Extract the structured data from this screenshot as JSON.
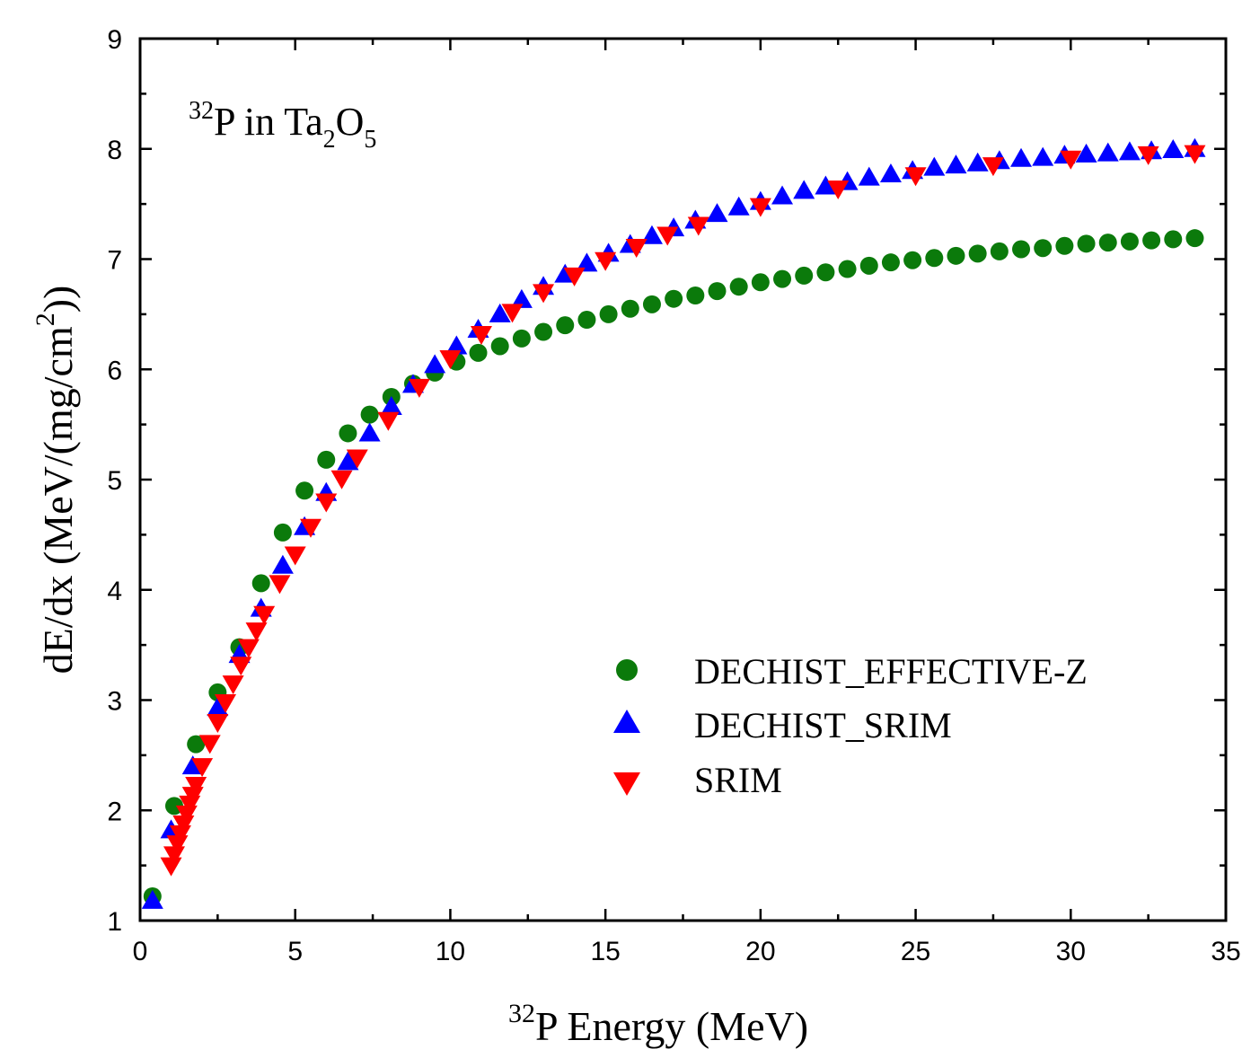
{
  "chart_data": {
    "type": "scatter",
    "annotation": {
      "sup": "32",
      "text1": "P in Ta",
      "sub1": "2",
      "text2": "O",
      "sub2": "5"
    },
    "xlabel": {
      "sup": "32",
      "text": "P Energy (MeV)"
    },
    "ylabel": {
      "text": "dE/dx (MeV/(mg/cm",
      "sup": "2",
      "close": "))"
    },
    "xlim": [
      0,
      35
    ],
    "ylim": [
      1,
      9
    ],
    "x_ticks": [
      0,
      5,
      10,
      15,
      20,
      25,
      30,
      35
    ],
    "y_ticks": [
      1,
      2,
      3,
      4,
      5,
      6,
      7,
      8,
      9
    ],
    "x_tick_labels": [
      "0",
      "5",
      "10",
      "15",
      "20",
      "25",
      "30",
      "35"
    ],
    "y_tick_labels": [
      "1",
      "2",
      "3",
      "4",
      "5",
      "6",
      "7",
      "8",
      "9"
    ],
    "x_minor_step": 2.5,
    "y_minor_step": 0.5,
    "legend_position": "lower-right",
    "grid": false,
    "series": [
      {
        "name": "DECHIST_EFFECTIVE-Z",
        "marker": "circle",
        "color": "#0b7a0b",
        "points": [
          [
            0.4,
            1.22
          ],
          [
            1.1,
            2.04
          ],
          [
            1.8,
            2.6
          ],
          [
            2.5,
            3.07
          ],
          [
            3.2,
            3.48
          ],
          [
            3.9,
            4.06
          ],
          [
            4.6,
            4.52
          ],
          [
            5.3,
            4.9
          ],
          [
            6.0,
            5.18
          ],
          [
            6.7,
            5.42
          ],
          [
            7.4,
            5.59
          ],
          [
            8.1,
            5.75
          ],
          [
            8.8,
            5.87
          ],
          [
            9.5,
            5.97
          ],
          [
            10.2,
            6.07
          ],
          [
            10.9,
            6.15
          ],
          [
            11.6,
            6.21
          ],
          [
            12.3,
            6.28
          ],
          [
            13.0,
            6.34
          ],
          [
            13.7,
            6.4
          ],
          [
            14.4,
            6.45
          ],
          [
            15.1,
            6.5
          ],
          [
            15.8,
            6.55
          ],
          [
            16.5,
            6.59
          ],
          [
            17.2,
            6.64
          ],
          [
            17.9,
            6.67
          ],
          [
            18.6,
            6.71
          ],
          [
            19.3,
            6.75
          ],
          [
            20.0,
            6.79
          ],
          [
            20.7,
            6.82
          ],
          [
            21.4,
            6.85
          ],
          [
            22.1,
            6.88
          ],
          [
            22.8,
            6.91
          ],
          [
            23.5,
            6.94
          ],
          [
            24.2,
            6.97
          ],
          [
            24.9,
            6.99
          ],
          [
            25.6,
            7.01
          ],
          [
            26.3,
            7.03
          ],
          [
            27.0,
            7.05
          ],
          [
            27.7,
            7.07
          ],
          [
            28.4,
            7.09
          ],
          [
            29.1,
            7.1
          ],
          [
            29.8,
            7.12
          ],
          [
            30.5,
            7.14
          ],
          [
            31.2,
            7.15
          ],
          [
            31.9,
            7.16
          ],
          [
            32.6,
            7.17
          ],
          [
            33.3,
            7.18
          ],
          [
            34.0,
            7.19
          ]
        ]
      },
      {
        "name": "DECHIST_SRIM",
        "marker": "triangle-up",
        "color": "#0000ff",
        "points": [
          [
            0.4,
            1.18
          ],
          [
            1.0,
            1.82
          ],
          [
            1.7,
            2.4
          ],
          [
            2.5,
            2.93
          ],
          [
            3.2,
            3.41
          ],
          [
            3.9,
            3.83
          ],
          [
            4.6,
            4.22
          ],
          [
            5.3,
            4.57
          ],
          [
            6.0,
            4.88
          ],
          [
            6.7,
            5.16
          ],
          [
            7.4,
            5.42
          ],
          [
            8.1,
            5.66
          ],
          [
            8.8,
            5.86
          ],
          [
            9.5,
            6.04
          ],
          [
            10.2,
            6.21
          ],
          [
            10.9,
            6.36
          ],
          [
            11.6,
            6.5
          ],
          [
            12.3,
            6.63
          ],
          [
            13.0,
            6.75
          ],
          [
            13.7,
            6.86
          ],
          [
            14.4,
            6.96
          ],
          [
            15.1,
            7.05
          ],
          [
            15.8,
            7.13
          ],
          [
            16.5,
            7.21
          ],
          [
            17.2,
            7.28
          ],
          [
            17.9,
            7.35
          ],
          [
            18.6,
            7.41
          ],
          [
            19.3,
            7.47
          ],
          [
            20.0,
            7.52
          ],
          [
            20.7,
            7.57
          ],
          [
            21.4,
            7.62
          ],
          [
            22.1,
            7.66
          ],
          [
            22.8,
            7.7
          ],
          [
            23.5,
            7.74
          ],
          [
            24.2,
            7.77
          ],
          [
            24.9,
            7.8
          ],
          [
            25.6,
            7.83
          ],
          [
            26.3,
            7.85
          ],
          [
            27.0,
            7.87
          ],
          [
            27.7,
            7.89
          ],
          [
            28.4,
            7.91
          ],
          [
            29.1,
            7.92
          ],
          [
            29.8,
            7.94
          ],
          [
            30.5,
            7.95
          ],
          [
            31.2,
            7.96
          ],
          [
            31.9,
            7.97
          ],
          [
            32.6,
            7.98
          ],
          [
            33.3,
            7.99
          ],
          [
            34.0,
            8.0
          ]
        ]
      },
      {
        "name": "SRIM",
        "marker": "triangle-down",
        "color": "#ff0000",
        "points": [
          [
            1.0,
            1.5
          ],
          [
            1.1,
            1.6
          ],
          [
            1.2,
            1.7
          ],
          [
            1.3,
            1.79
          ],
          [
            1.4,
            1.88
          ],
          [
            1.5,
            1.97
          ],
          [
            1.6,
            2.06
          ],
          [
            1.7,
            2.14
          ],
          [
            1.8,
            2.23
          ],
          [
            2.0,
            2.4
          ],
          [
            2.25,
            2.61
          ],
          [
            2.5,
            2.8
          ],
          [
            2.75,
            2.98
          ],
          [
            3.0,
            3.15
          ],
          [
            3.25,
            3.32
          ],
          [
            3.5,
            3.48
          ],
          [
            3.75,
            3.63
          ],
          [
            4.0,
            3.78
          ],
          [
            4.5,
            4.06
          ],
          [
            5.0,
            4.32
          ],
          [
            5.5,
            4.57
          ],
          [
            6.0,
            4.8
          ],
          [
            6.5,
            5.01
          ],
          [
            7.0,
            5.2
          ],
          [
            8.0,
            5.54
          ],
          [
            9.0,
            5.84
          ],
          [
            10.0,
            6.1
          ],
          [
            11.0,
            6.32
          ],
          [
            12.0,
            6.52
          ],
          [
            13.0,
            6.7
          ],
          [
            14.0,
            6.85
          ],
          [
            15.0,
            6.99
          ],
          [
            16.0,
            7.11
          ],
          [
            17.0,
            7.22
          ],
          [
            18.0,
            7.31
          ],
          [
            20.0,
            7.48
          ],
          [
            22.5,
            7.64
          ],
          [
            25.0,
            7.76
          ],
          [
            27.5,
            7.85
          ],
          [
            30.0,
            7.91
          ],
          [
            32.5,
            7.95
          ],
          [
            34.0,
            7.96
          ]
        ]
      }
    ]
  }
}
